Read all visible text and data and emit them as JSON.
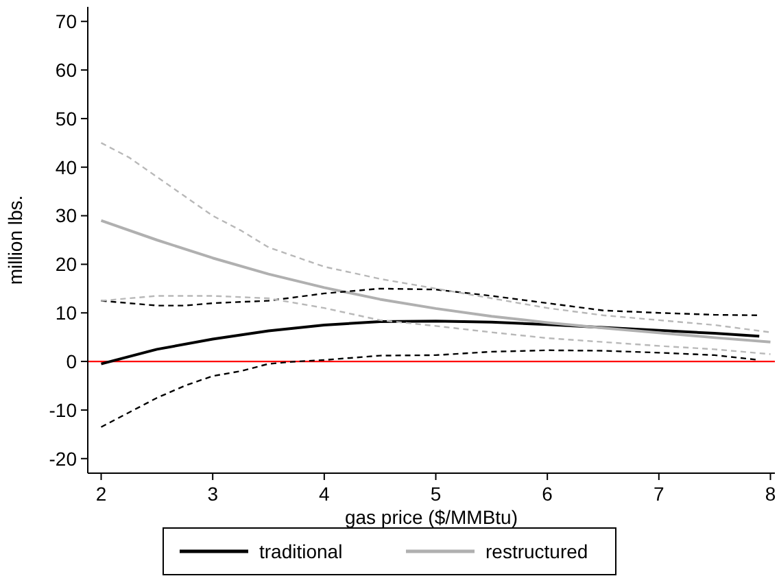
{
  "chart_data": {
    "type": "line",
    "xlabel": "gas price ($/MMBtu)",
    "ylabel": "million lbs.",
    "xlim": [
      1.88,
      8.04
    ],
    "ylim": [
      -23,
      73
    ],
    "xticks": [
      2,
      3,
      4,
      5,
      6,
      7,
      8
    ],
    "yticks": [
      -20,
      -10,
      0,
      10,
      20,
      30,
      40,
      50,
      60,
      70
    ],
    "grid": false,
    "legend": "bottom",
    "line_style": "solid",
    "ref_lines": [
      {
        "axis": "y",
        "value": 0,
        "color": "#ff0000"
      }
    ],
    "series": [
      {
        "name": "traditional",
        "color": "#000000",
        "x": [
          2,
          2.5,
          3,
          3.5,
          4,
          4.5,
          5,
          5.5,
          6,
          6.5,
          7,
          7.5,
          7.9
        ],
        "values": [
          -0.5,
          2.5,
          4.6,
          6.3,
          7.5,
          8.2,
          8.3,
          8.1,
          7.6,
          7.0,
          6.4,
          5.8,
          5.2
        ]
      },
      {
        "name": "restructured",
        "color": "#b0b0b0",
        "x": [
          2,
          2.5,
          3,
          3.5,
          4,
          4.5,
          5,
          5.5,
          6,
          6.5,
          7,
          7.5,
          8
        ],
        "values": [
          29,
          25,
          21.3,
          18,
          15.2,
          12.8,
          10.9,
          9.3,
          8,
          6.9,
          5.9,
          4.9,
          4.0
        ]
      },
      {
        "color": "#000000",
        "line_style": "dashed",
        "x": [
          2,
          2.25,
          2.5,
          2.75,
          3,
          3.5,
          4,
          4.5,
          5,
          5.5,
          6,
          6.5,
          7,
          7.5,
          7.9
        ],
        "values": [
          12.5,
          12,
          11.5,
          11.5,
          12,
          12.5,
          14,
          15,
          14.8,
          13.5,
          12,
          10.5,
          10,
          9.6,
          9.5
        ]
      },
      {
        "color": "#000000",
        "line_style": "dashed",
        "x": [
          2,
          2.25,
          2.5,
          2.75,
          3,
          3.25,
          3.5,
          3.75,
          4,
          4.5,
          5,
          5.5,
          6,
          6.5,
          7,
          7.5,
          7.9
        ],
        "values": [
          -13.5,
          -10.5,
          -7.5,
          -5,
          -3,
          -2,
          -0.5,
          0,
          0.3,
          1.2,
          1.3,
          2,
          2.3,
          2.2,
          1.8,
          1.3,
          0.3
        ]
      },
      {
        "color": "#b8b8b8",
        "line_style": "dashed",
        "x": [
          2,
          2.25,
          2.5,
          2.75,
          3,
          3.25,
          3.5,
          3.75,
          4,
          4.5,
          5,
          5.5,
          6,
          6.5,
          7,
          7.5,
          8
        ],
        "values": [
          45,
          42,
          38,
          34,
          30,
          27,
          23.5,
          21.5,
          19.5,
          17,
          15,
          13,
          11,
          9.5,
          8.5,
          7.5,
          6
        ]
      },
      {
        "color": "#b8b8b8",
        "line_style": "dashed",
        "x": [
          2,
          2.5,
          3,
          3.5,
          4,
          4.5,
          5,
          5.5,
          6,
          6.5,
          7,
          7.5,
          8
        ],
        "values": [
          12.5,
          13.5,
          13.5,
          13,
          11,
          8.5,
          7.3,
          6,
          4.8,
          4,
          3.2,
          2.5,
          1.5
        ]
      }
    ]
  }
}
